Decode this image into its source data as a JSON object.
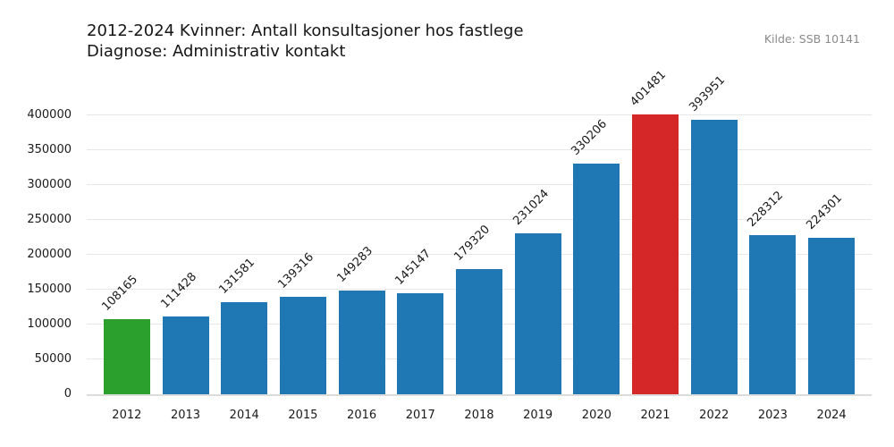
{
  "title": {
    "line1": "2012-2024 Kvinner: Antall konsultasjoner hos fastlege",
    "line2": "Diagnose: Administrativ kontakt"
  },
  "source": "Kilde: SSB 10141",
  "chart_data": {
    "type": "bar",
    "title": "2012-2024 Kvinner: Antall konsultasjoner hos fastlege — Diagnose: Administrativ kontakt",
    "annotation": "Kilde: SSB 10141",
    "categories": [
      "2012",
      "2013",
      "2014",
      "2015",
      "2016",
      "2017",
      "2018",
      "2019",
      "2020",
      "2021",
      "2022",
      "2023",
      "2024"
    ],
    "values": [
      108165,
      111428,
      131581,
      139316,
      149283,
      145147,
      179320,
      231024,
      330206,
      401481,
      393951,
      228312,
      224301
    ],
    "bar_colors": [
      "#2ca02c",
      "#1f77b4",
      "#1f77b4",
      "#1f77b4",
      "#1f77b4",
      "#1f77b4",
      "#1f77b4",
      "#1f77b4",
      "#1f77b4",
      "#d62728",
      "#1f77b4",
      "#1f77b4",
      "#1f77b4"
    ],
    "xlabel": "",
    "ylabel": "",
    "ylim": [
      0,
      400000
    ],
    "yticks": [
      0,
      50000,
      100000,
      150000,
      200000,
      250000,
      300000,
      350000,
      400000
    ],
    "grid": true,
    "legend": null,
    "value_label_rotation": 45
  },
  "colors": {
    "default_bar": "#1f77b4",
    "first_bar": "#2ca02c",
    "highlight_bar": "#d62728",
    "gridline": "#e7e7e7",
    "zero_line": "#dcdcdc",
    "source_text": "#8a8a8a",
    "text": "#1a1a1a"
  }
}
